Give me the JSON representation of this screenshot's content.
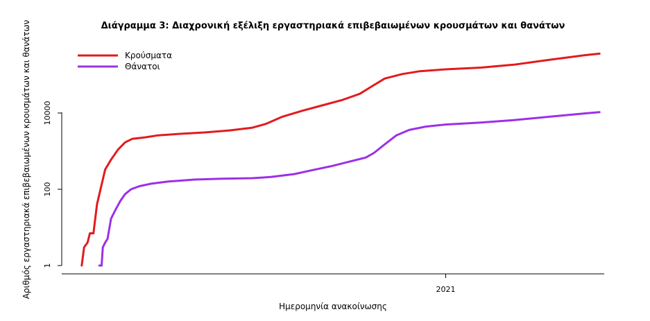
{
  "chart_data": {
    "type": "line",
    "title": "Διάγραμμα 3: Διαχρονική εξέλιξη εργαστηριακά επιβεβαιωμένων κρουσμάτων και θανάτων",
    "xlabel": "Ημερομηνία ανακοίνωσης",
    "ylabel": "Αριθμός εργαστηριακά επιβεβαιωμένων κρουσμάτων και θανάτων",
    "y_scale": "log",
    "ylim": [
      1,
      200000
    ],
    "xlim": [
      "2020-02-09",
      "2021-05-16"
    ],
    "y_ticks": [
      {
        "value": 1,
        "label": "1"
      },
      {
        "value": 100,
        "label": "100"
      },
      {
        "value": 10000,
        "label": "10000"
      }
    ],
    "x_ticks": [
      {
        "value": "2021-01-01",
        "label": "2021"
      }
    ],
    "legend": {
      "position": "top-left"
    },
    "grid": false,
    "series": [
      {
        "name": "Κρούσματα",
        "color": "#e31a1c",
        "points": [
          [
            "2020-02-26",
            1
          ],
          [
            "2020-02-28",
            3
          ],
          [
            "2020-03-02",
            4
          ],
          [
            "2020-03-04",
            7
          ],
          [
            "2020-03-07",
            7
          ],
          [
            "2020-03-10",
            40
          ],
          [
            "2020-03-13",
            100
          ],
          [
            "2020-03-17",
            330
          ],
          [
            "2020-03-22",
            600
          ],
          [
            "2020-03-28",
            1100
          ],
          [
            "2020-04-03",
            1700
          ],
          [
            "2020-04-09",
            2100
          ],
          [
            "2020-04-20",
            2300
          ],
          [
            "2020-05-01",
            2600
          ],
          [
            "2020-05-20",
            2850
          ],
          [
            "2020-06-10",
            3100
          ],
          [
            "2020-07-01",
            3500
          ],
          [
            "2020-07-20",
            4100
          ],
          [
            "2020-08-01",
            5200
          ],
          [
            "2020-08-15",
            8000
          ],
          [
            "2020-09-01",
            11500
          ],
          [
            "2020-09-20",
            16500
          ],
          [
            "2020-10-05",
            22000
          ],
          [
            "2020-10-20",
            32000
          ],
          [
            "2020-10-30",
            50000
          ],
          [
            "2020-11-10",
            80000
          ],
          [
            "2020-11-25",
            105000
          ],
          [
            "2020-12-10",
            125000
          ],
          [
            "2021-01-01",
            140000
          ],
          [
            "2021-01-31",
            155000
          ],
          [
            "2021-02-28",
            185000
          ],
          [
            "2021-03-31",
            250000
          ],
          [
            "2021-04-30",
            330000
          ],
          [
            "2021-05-12",
            360000
          ]
        ]
      },
      {
        "name": "Θάνατοι",
        "color": "#9b30e8",
        "points": [
          [
            "2020-03-12",
            1
          ],
          [
            "2020-03-14",
            1
          ],
          [
            "2020-03-15",
            3
          ],
          [
            "2020-03-17",
            4
          ],
          [
            "2020-03-19",
            5
          ],
          [
            "2020-03-22",
            17
          ],
          [
            "2020-03-26",
            30
          ],
          [
            "2020-03-30",
            50
          ],
          [
            "2020-04-03",
            75
          ],
          [
            "2020-04-08",
            100
          ],
          [
            "2020-04-15",
            120
          ],
          [
            "2020-04-25",
            140
          ],
          [
            "2020-05-10",
            160
          ],
          [
            "2020-06-01",
            180
          ],
          [
            "2020-06-25",
            190
          ],
          [
            "2020-07-20",
            195
          ],
          [
            "2020-08-05",
            210
          ],
          [
            "2020-08-25",
            250
          ],
          [
            "2020-09-10",
            320
          ],
          [
            "2020-09-25",
            400
          ],
          [
            "2020-10-10",
            520
          ],
          [
            "2020-10-25",
            680
          ],
          [
            "2020-11-01",
            900
          ],
          [
            "2020-11-10",
            1500
          ],
          [
            "2020-11-20",
            2600
          ],
          [
            "2020-12-01",
            3600
          ],
          [
            "2020-12-15",
            4400
          ],
          [
            "2021-01-01",
            5000
          ],
          [
            "2021-01-31",
            5600
          ],
          [
            "2021-02-28",
            6500
          ],
          [
            "2021-03-31",
            8000
          ],
          [
            "2021-04-30",
            9800
          ],
          [
            "2021-05-12",
            10500
          ]
        ]
      }
    ]
  }
}
